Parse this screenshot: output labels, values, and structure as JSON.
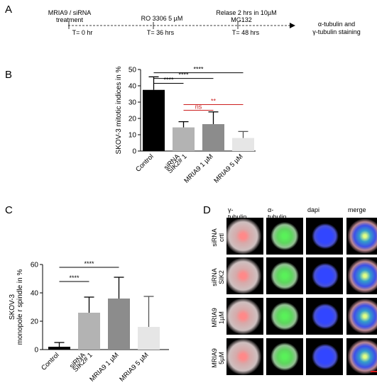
{
  "panels": {
    "A": "A",
    "B": "B",
    "C": "C",
    "D": "D"
  },
  "timeline": {
    "events": [
      {
        "top": "MRIA9 / siRNA",
        "top2": "treatment",
        "bottom": "T= 0 hr"
      },
      {
        "top": "RO 3306 5 µM",
        "top2": "",
        "bottom": "T= 36 hrs"
      },
      {
        "top": "Relase 2 hrs in 10µM",
        "top2": "MG132",
        "bottom": "T= 48 hrs"
      }
    ],
    "end_label_1": "α-tubulin and",
    "end_label_2": "γ-tubulin staining"
  },
  "chart_data": [
    {
      "type": "bar",
      "panel": "B",
      "ylabel": "SKOV-3 mitotic indices in %",
      "ylim": [
        0,
        50
      ],
      "yticks": [
        "0",
        "10",
        "20",
        "30",
        "40",
        "50"
      ],
      "categories": [
        "Control",
        "siRNA SIK2# 1",
        "MRIA9 1 µM",
        "MRIA9 5 µM"
      ],
      "category_lines": [
        [
          "Control"
        ],
        [
          "siRNA",
          "SIK2# 1"
        ],
        [
          "MRIA9 1 µM"
        ],
        [
          "MRIA9 5 µM"
        ]
      ],
      "values": [
        37.5,
        14.5,
        16.5,
        8
      ],
      "errors": [
        8,
        3.5,
        7.5,
        4
      ],
      "colors": [
        "#000000",
        "#b3b3b3",
        "#8c8c8c",
        "#e6e6e6"
      ],
      "significance": [
        {
          "from": 0,
          "to": 3,
          "label": "****",
          "color": "#000000",
          "y": 48
        },
        {
          "from": 0,
          "to": 2,
          "label": "****",
          "color": "#000000",
          "y": 44.5
        },
        {
          "from": 0,
          "to": 1,
          "label": "****",
          "color": "#000000",
          "y": 41.5
        },
        {
          "from": 1,
          "to": 3,
          "label": "**",
          "color": "#cc1f1f",
          "y": 28.5
        },
        {
          "from": 1,
          "to": 2,
          "label": "ns",
          "color": "#cc1f1f",
          "y": 25
        }
      ]
    },
    {
      "type": "bar",
      "panel": "C",
      "ylabel": [
        "SKOV-3",
        "monopole r spindle in %"
      ],
      "ylim": [
        0,
        60
      ],
      "yticks": [
        "0",
        "20",
        "40",
        "60"
      ],
      "categories": [
        "Control",
        "siRNA SIK2# 1",
        "MRIA9 1 µM",
        "MRIA9 5 µM"
      ],
      "category_lines": [
        [
          "Control"
        ],
        [
          "siRNA",
          "SIK2# 1"
        ],
        [
          "MRIA9 1 µM"
        ],
        [
          "MRIA9 5 µM"
        ]
      ],
      "values": [
        2,
        26,
        36,
        16
      ],
      "errors": [
        3,
        11,
        15,
        21.5
      ],
      "colors": [
        "#000000",
        "#b3b3b3",
        "#8c8c8c",
        "#e6e6e6"
      ],
      "significance": [
        {
          "from": 0,
          "to": 2,
          "label": "****",
          "color": "#000000",
          "y": 58
        },
        {
          "from": 0,
          "to": 1,
          "label": "****",
          "color": "#000000",
          "y": 48
        }
      ]
    }
  ],
  "micrographs": {
    "columns": [
      "γ-tubulin",
      "α-tubulin",
      "dapi",
      "merge"
    ],
    "rows": [
      {
        "line1": "siRNA",
        "line2": "crtl"
      },
      {
        "line1": "siRNA",
        "line2": "SIK2"
      },
      {
        "line1": "MRIA9",
        "line2": "1µM"
      },
      {
        "line1": "MRIA9",
        "line2": "5µM"
      }
    ],
    "channel_colors": {
      "gamma": "#ff2020",
      "alpha": "#20e020",
      "dapi": "#2a36ff"
    },
    "scalebar_color": "#e02020"
  }
}
